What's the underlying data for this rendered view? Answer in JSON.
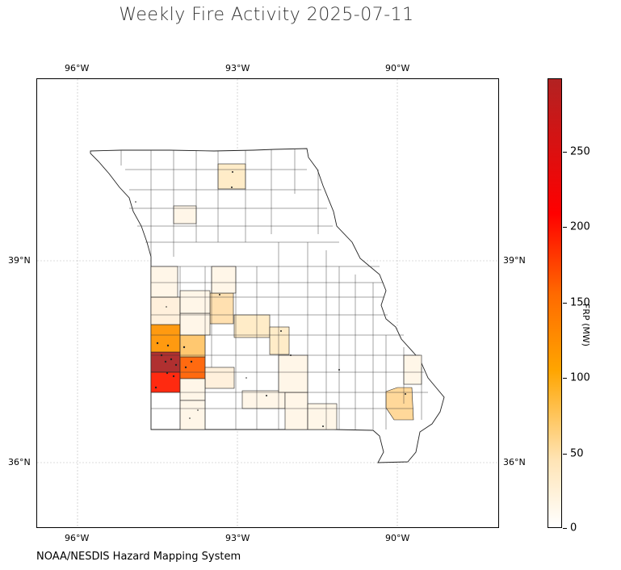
{
  "title": "Weekly Fire Activity 2025-07-11",
  "source": "NOAA/NESDIS Hazard Mapping System",
  "map": {
    "lon_ticks": [
      "96°W",
      "93°W",
      "90°W"
    ],
    "lat_ticks": [
      "39°N",
      "36°N"
    ],
    "state": "Missouri",
    "extent": {
      "lon": [
        -96.8,
        -88.2
      ],
      "lat": [
        34.9,
        41.6
      ]
    },
    "gridlines": true
  },
  "colorbar": {
    "label": "FRP (MW)",
    "ticks": [
      "0",
      "50",
      "100",
      "150",
      "200",
      "250"
    ],
    "range": [
      0,
      297
    ],
    "colors": [
      "#ffffff",
      "#ffe4b5",
      "#ffa500",
      "#ff6a00",
      "#ff0000",
      "#b22222"
    ]
  },
  "county_fills": [
    {
      "frp": 297,
      "color": "#b03030"
    },
    {
      "frp": 215,
      "color": "#ff2a10"
    },
    {
      "frp": 160,
      "color": "#ff6a10"
    },
    {
      "frp": 120,
      "color": "#ff9a10"
    },
    {
      "frp": 80,
      "color": "#ffc870"
    },
    {
      "frp": 40,
      "color": "#ffe0b0"
    },
    {
      "frp": 25,
      "color": "#ffecc8"
    },
    {
      "frp": 10,
      "color": "#fff6e8"
    }
  ]
}
